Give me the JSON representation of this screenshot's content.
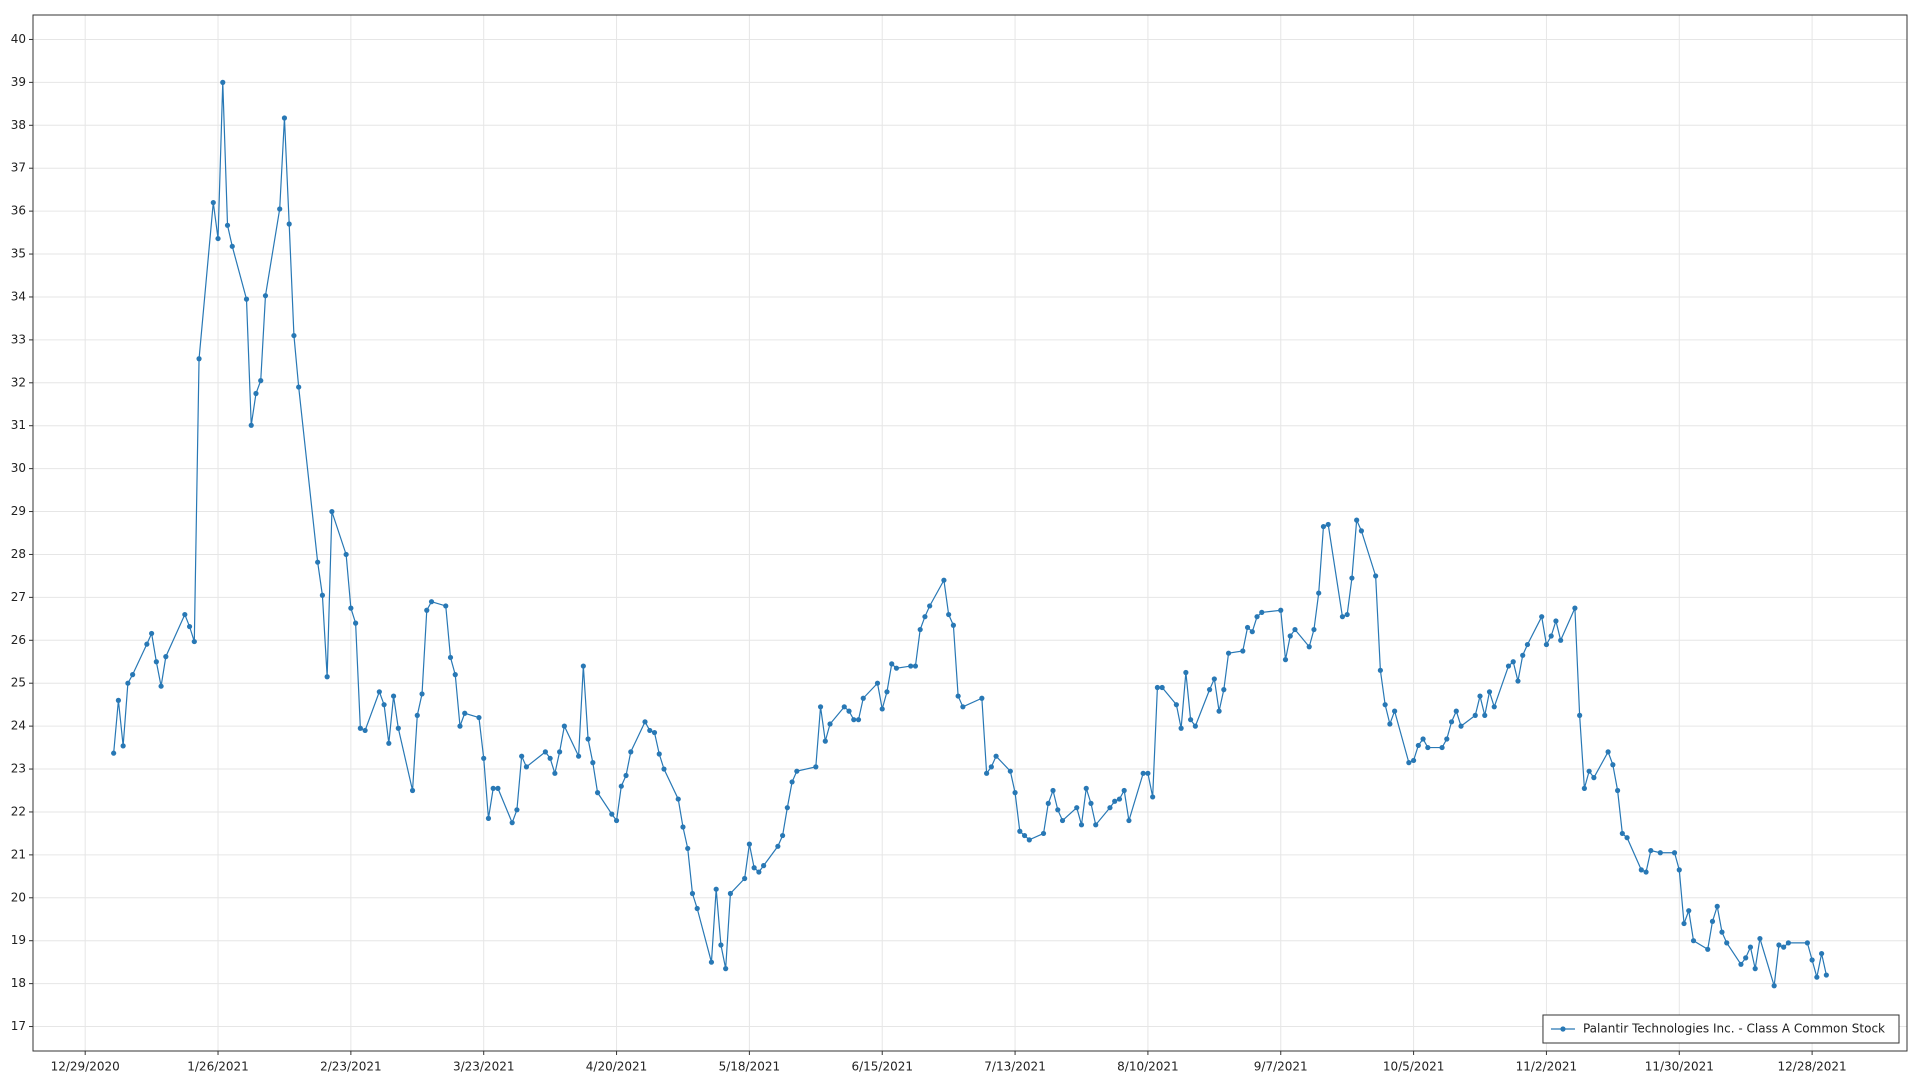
{
  "chart_data": {
    "type": "line",
    "xlim": [
      "12/18/2020",
      "1/17/2022"
    ],
    "xticks": [
      "12/29/2020",
      "1/26/2021",
      "2/23/2021",
      "3/23/2021",
      "4/20/2021",
      "5/18/2021",
      "6/15/2021",
      "7/13/2021",
      "8/10/2021",
      "9/7/2021",
      "10/5/2021",
      "11/2/2021",
      "11/30/2021",
      "12/28/2021"
    ],
    "ylim": [
      16.43,
      40.57
    ],
    "yticks": [
      17,
      18,
      19,
      20,
      21,
      22,
      23,
      24,
      25,
      26,
      27,
      28,
      29,
      30,
      31,
      32,
      33,
      34,
      35,
      36,
      37,
      38,
      39,
      40
    ],
    "grid": true,
    "legend": "lower right",
    "x": [
      "1/4/2021",
      "1/5/2021",
      "1/6/2021",
      "1/7/2021",
      "1/8/2021",
      "1/11/2021",
      "1/12/2021",
      "1/13/2021",
      "1/14/2021",
      "1/15/2021",
      "1/19/2021",
      "1/20/2021",
      "1/21/2021",
      "1/22/2021",
      "1/25/2021",
      "1/26/2021",
      "1/27/2021",
      "1/28/2021",
      "1/29/2021",
      "2/1/2021",
      "2/2/2021",
      "2/3/2021",
      "2/4/2021",
      "2/5/2021",
      "2/8/2021",
      "2/9/2021",
      "2/10/2021",
      "2/11/2021",
      "2/12/2021",
      "2/16/2021",
      "2/17/2021",
      "2/18/2021",
      "2/19/2021",
      "2/22/2021",
      "2/23/2021",
      "2/24/2021",
      "2/25/2021",
      "2/26/2021",
      "3/1/2021",
      "3/2/2021",
      "3/3/2021",
      "3/4/2021",
      "3/5/2021",
      "3/8/2021",
      "3/9/2021",
      "3/10/2021",
      "3/11/2021",
      "3/12/2021",
      "3/15/2021",
      "3/16/2021",
      "3/17/2021",
      "3/18/2021",
      "3/19/2021",
      "3/22/2021",
      "3/23/2021",
      "3/24/2021",
      "3/25/2021",
      "3/26/2021",
      "3/29/2021",
      "3/30/2021",
      "3/31/2021",
      "4/1/2021",
      "4/5/2021",
      "4/6/2021",
      "4/7/2021",
      "4/8/2021",
      "4/9/2021",
      "4/12/2021",
      "4/13/2021",
      "4/14/2021",
      "4/15/2021",
      "4/16/2021",
      "4/19/2021",
      "4/20/2021",
      "4/21/2021",
      "4/22/2021",
      "4/23/2021",
      "4/26/2021",
      "4/27/2021",
      "4/28/2021",
      "4/29/2021",
      "4/30/2021",
      "5/3/2021",
      "5/4/2021",
      "5/5/2021",
      "5/6/2021",
      "5/7/2021",
      "5/10/2021",
      "5/11/2021",
      "5/12/2021",
      "5/13/2021",
      "5/14/2021",
      "5/17/2021",
      "5/18/2021",
      "5/19/2021",
      "5/20/2021",
      "5/21/2021",
      "5/24/2021",
      "5/25/2021",
      "5/26/2021",
      "5/27/2021",
      "5/28/2021",
      "6/1/2021",
      "6/2/2021",
      "6/3/2021",
      "6/4/2021",
      "6/7/2021",
      "6/8/2021",
      "6/9/2021",
      "6/10/2021",
      "6/11/2021",
      "6/14/2021",
      "6/15/2021",
      "6/16/2021",
      "6/17/2021",
      "6/18/2021",
      "6/21/2021",
      "6/22/2021",
      "6/23/2021",
      "6/24/2021",
      "6/25/2021",
      "6/28/2021",
      "6/29/2021",
      "6/30/2021",
      "7/1/2021",
      "7/2/2021",
      "7/6/2021",
      "7/7/2021",
      "7/8/2021",
      "7/9/2021",
      "7/12/2021",
      "7/13/2021",
      "7/14/2021",
      "7/15/2021",
      "7/16/2021",
      "7/19/2021",
      "7/20/2021",
      "7/21/2021",
      "7/22/2021",
      "7/23/2021",
      "7/26/2021",
      "7/27/2021",
      "7/28/2021",
      "7/29/2021",
      "7/30/2021",
      "8/2/2021",
      "8/3/2021",
      "8/4/2021",
      "8/5/2021",
      "8/6/2021",
      "8/9/2021",
      "8/10/2021",
      "8/11/2021",
      "8/12/2021",
      "8/13/2021",
      "8/16/2021",
      "8/17/2021",
      "8/18/2021",
      "8/19/2021",
      "8/20/2021",
      "8/23/2021",
      "8/24/2021",
      "8/25/2021",
      "8/26/2021",
      "8/27/2021",
      "8/30/2021",
      "8/31/2021",
      "9/1/2021",
      "9/2/2021",
      "9/3/2021",
      "9/7/2021",
      "9/8/2021",
      "9/9/2021",
      "9/10/2021",
      "9/13/2021",
      "9/14/2021",
      "9/15/2021",
      "9/16/2021",
      "9/17/2021",
      "9/20/2021",
      "9/21/2021",
      "9/22/2021",
      "9/23/2021",
      "9/24/2021",
      "9/27/2021",
      "9/28/2021",
      "9/29/2021",
      "9/30/2021",
      "10/1/2021",
      "10/4/2021",
      "10/5/2021",
      "10/6/2021",
      "10/7/2021",
      "10/8/2021",
      "10/11/2021",
      "10/12/2021",
      "10/13/2021",
      "10/14/2021",
      "10/15/2021",
      "10/18/2021",
      "10/19/2021",
      "10/20/2021",
      "10/21/2021",
      "10/22/2021",
      "10/25/2021",
      "10/26/2021",
      "10/27/2021",
      "10/28/2021",
      "10/29/2021",
      "11/1/2021",
      "11/2/2021",
      "11/3/2021",
      "11/4/2021",
      "11/5/2021",
      "11/8/2021",
      "11/9/2021",
      "11/10/2021",
      "11/11/2021",
      "11/12/2021",
      "11/15/2021",
      "11/16/2021",
      "11/17/2021",
      "11/18/2021",
      "11/19/2021",
      "11/22/2021",
      "11/23/2021",
      "11/24/2021",
      "11/26/2021",
      "11/29/2021",
      "11/30/2021",
      "12/1/2021",
      "12/2/2021",
      "12/3/2021",
      "12/6/2021",
      "12/7/2021",
      "12/8/2021",
      "12/9/2021",
      "12/10/2021",
      "12/13/2021",
      "12/14/2021",
      "12/15/2021",
      "12/16/2021",
      "12/17/2021",
      "12/20/2021",
      "12/21/2021",
      "12/22/2021",
      "12/23/2021",
      "12/27/2021",
      "12/28/2021",
      "12/29/2021",
      "12/30/2021",
      "12/31/2021"
    ],
    "series": [
      {
        "name": "Palantir Technologies Inc. - Class A Common Stock",
        "color": "#2878b5",
        "values": [
          23.37,
          24.6,
          23.54,
          25.0,
          25.2,
          25.91,
          26.16,
          25.5,
          24.93,
          25.62,
          26.6,
          26.32,
          25.97,
          32.56,
          36.2,
          35.36,
          39.0,
          35.67,
          35.18,
          33.95,
          31.01,
          31.75,
          32.05,
          34.03,
          36.05,
          38.17,
          35.7,
          33.1,
          31.9,
          27.82,
          27.05,
          25.15,
          29.0,
          28.0,
          26.75,
          26.4,
          23.95,
          23.9,
          24.8,
          24.5,
          23.6,
          24.7,
          23.95,
          22.5,
          24.25,
          24.75,
          26.7,
          26.9,
          26.8,
          25.6,
          25.2,
          24.0,
          24.3,
          24.2,
          23.25,
          21.85,
          22.55,
          22.55,
          21.75,
          22.05,
          23.3,
          23.05,
          23.4,
          23.25,
          22.9,
          23.4,
          24.0,
          23.3,
          25.4,
          23.7,
          23.15,
          22.45,
          21.95,
          21.8,
          22.6,
          22.85,
          23.4,
          24.1,
          23.9,
          23.85,
          23.35,
          23.0,
          22.3,
          21.65,
          21.15,
          20.1,
          19.75,
          18.5,
          20.2,
          18.9,
          18.35,
          20.1,
          20.45,
          21.25,
          20.7,
          20.6,
          20.75,
          21.2,
          21.45,
          22.1,
          22.7,
          22.95,
          23.05,
          24.45,
          23.65,
          24.05,
          24.45,
          24.35,
          24.15,
          24.15,
          24.65,
          25.0,
          24.4,
          24.8,
          25.45,
          25.35,
          25.4,
          25.4,
          26.25,
          26.55,
          26.8,
          27.4,
          26.6,
          26.35,
          24.7,
          24.45,
          24.65,
          22.9,
          23.05,
          23.3,
          22.95,
          22.45,
          21.55,
          21.45,
          21.35,
          21.5,
          22.2,
          22.5,
          22.05,
          21.8,
          22.1,
          21.7,
          22.55,
          22.2,
          21.7,
          22.1,
          22.25,
          22.3,
          22.5,
          21.8,
          22.9,
          22.9,
          22.35,
          24.9,
          24.9,
          24.5,
          23.95,
          25.25,
          24.15,
          24.0,
          24.85,
          25.1,
          24.35,
          24.85,
          25.7,
          25.75,
          26.3,
          26.2,
          26.55,
          26.65,
          26.7,
          25.55,
          26.1,
          26.25,
          25.85,
          26.25,
          27.1,
          28.65,
          28.7,
          26.55,
          26.6,
          27.45,
          28.8,
          28.55,
          27.5,
          25.3,
          24.5,
          24.05,
          24.35,
          23.15,
          23.2,
          23.55,
          23.7,
          23.5,
          23.5,
          23.7,
          24.1,
          24.35,
          24.0,
          24.25,
          24.7,
          24.25,
          24.8,
          24.45,
          25.4,
          25.5,
          25.05,
          25.65,
          25.9,
          26.55,
          25.9,
          26.1,
          26.45,
          26.0,
          26.75,
          24.25,
          22.55,
          22.95,
          22.8,
          23.4,
          23.1,
          22.5,
          21.5,
          21.4,
          20.65,
          20.6,
          21.1,
          21.05,
          21.05,
          20.65,
          19.4,
          19.7,
          19.0,
          18.8,
          19.45,
          19.8,
          19.2,
          18.95,
          18.45,
          18.6,
          18.85,
          18.35,
          19.05,
          17.95,
          18.9,
          18.85,
          18.95,
          18.95,
          18.55,
          18.15,
          18.7,
          18.2
        ]
      }
    ]
  }
}
